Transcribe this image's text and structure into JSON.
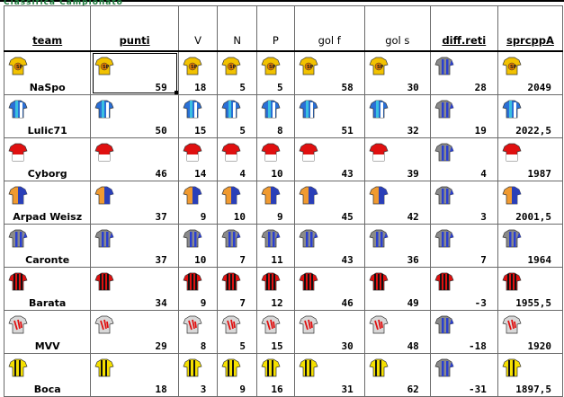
{
  "header_strip_text": "Classifica Campionato",
  "headers": {
    "team": "team",
    "punti": "punti",
    "v": "V",
    "n": "N",
    "p": "P",
    "gol_f": "gol f",
    "gol_s": "gol s",
    "diff": "diff.reti",
    "spr": "sprcppA"
  },
  "rows": [
    {
      "team": "NaSpo",
      "punti": "59",
      "v": "18",
      "n": "5",
      "p": "5",
      "gol_f": "58",
      "gol_s": "30",
      "diff": "28",
      "spr": "2049",
      "kit": "naspo",
      "c1": "#f2c200",
      "c2": "#e07a00",
      "diffkit": "caronte"
    },
    {
      "team": "Lulic71",
      "punti": "50",
      "v": "15",
      "n": "5",
      "p": "8",
      "gol_f": "51",
      "gol_s": "32",
      "diff": "19",
      "spr": "2022,5",
      "kit": "lulic",
      "c1": "#2a6fd6",
      "c2": "#39c0e0",
      "diffkit": "caronte"
    },
    {
      "team": "Cyborg",
      "punti": "46",
      "v": "14",
      "n": "4",
      "p": "10",
      "gol_f": "43",
      "gol_s": "39",
      "diff": "4",
      "spr": "1987",
      "kit": "cyborg",
      "c1": "#e01010",
      "c2": "#ffffff",
      "diffkit": "caronte"
    },
    {
      "team": "Arpad Weisz",
      "punti": "37",
      "v": "9",
      "n": "10",
      "p": "9",
      "gol_f": "45",
      "gol_s": "42",
      "diff": "3",
      "spr": "2001,5",
      "kit": "arpad",
      "c1": "#f09a30",
      "c2": "#2a3fb8",
      "diffkit": "caronte"
    },
    {
      "team": "Caronte",
      "punti": "37",
      "v": "10",
      "n": "7",
      "p": "11",
      "gol_f": "43",
      "gol_s": "36",
      "diff": "7",
      "spr": "1964",
      "kit": "caronte",
      "c1": "#2a3fd0",
      "c2": "#8a8a8a",
      "diffkit": "caronte"
    },
    {
      "team": "Barata",
      "punti": "34",
      "v": "9",
      "n": "7",
      "p": "12",
      "gol_f": "46",
      "gol_s": "49",
      "diff": "-3",
      "spr": "1955,5",
      "kit": "barata",
      "c1": "#e01010",
      "c2": "#111111",
      "diffkit": "barata"
    },
    {
      "team": "MVV",
      "punti": "29",
      "v": "8",
      "n": "5",
      "p": "15",
      "gol_f": "30",
      "gol_s": "48",
      "diff": "-18",
      "spr": "1920",
      "kit": "mvv",
      "c1": "#e01010",
      "c2": "#d8d8d8",
      "diffkit": "caronte"
    },
    {
      "team": "Boca",
      "punti": "18",
      "v": "3",
      "n": "9",
      "p": "16",
      "gol_f": "31",
      "gol_s": "62",
      "diff": "-31",
      "spr": "1897,5",
      "kit": "boca",
      "c1": "#f5e000",
      "c2": "#111111",
      "diffkit": "caronte"
    }
  ]
}
